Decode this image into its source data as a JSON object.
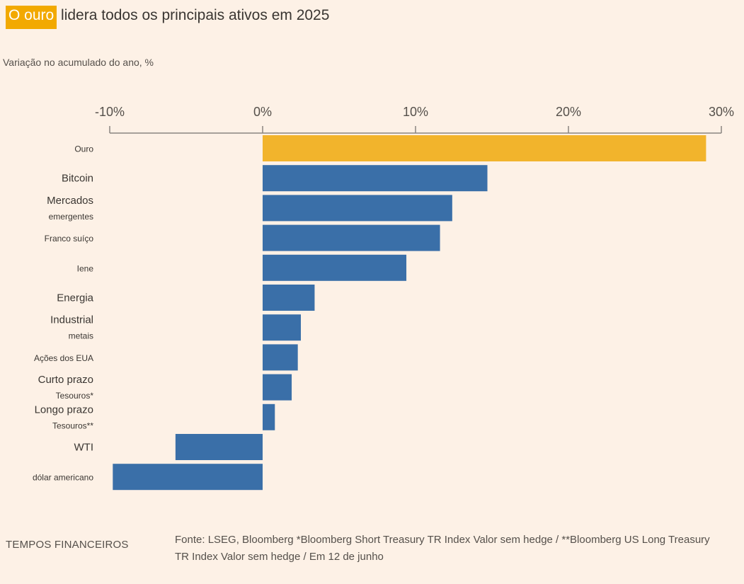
{
  "title": {
    "highlight": "O ouro",
    "rest": " lidera todos os principais ativos em 2025"
  },
  "subtitle": "Variação no acumulado do ano, %",
  "footer": {
    "brand": "TEMPOS FINANCEIROS",
    "source": "Fonte: LSEG, Bloomberg *Bloomberg Short Treasury TR Index Valor sem hedge / **Bloomberg US Long Treasury TR Index Valor sem hedge / Em 12 de junho"
  },
  "colors": {
    "highlight": "#f2b42c",
    "bar": "#3a6fa8",
    "axis": "#8a8580",
    "tick_text": "#55504b",
    "background": "#fdf1e6"
  },
  "chart_data": {
    "type": "bar",
    "orientation": "horizontal",
    "xlim": [
      -10,
      30
    ],
    "ticks": [
      -10,
      0,
      10,
      20,
      30
    ],
    "tick_labels": [
      "-10%",
      "0%",
      "10%",
      "20%",
      "30%"
    ],
    "axis_position": "top",
    "grid": false,
    "categories": [
      "Ouro",
      "Bitcoin",
      "Mercados emergentes",
      "Franco suíço",
      "Iene",
      "Energia",
      "Industrial metais",
      "Ações dos EUA",
      "Curto prazo Tesouros*",
      "Longo prazo Tesouros**",
      "WTI",
      "dólar americano"
    ],
    "category_lines": [
      [
        "Ouro"
      ],
      [
        "Bitcoin"
      ],
      [
        "Mercados",
        "emergentes"
      ],
      [
        "Franco suíço"
      ],
      [
        "Iene"
      ],
      [
        "Energia"
      ],
      [
        "Industrial",
        "metais"
      ],
      [
        "Ações dos EUA"
      ],
      [
        "Curto prazo",
        "Tesouros*"
      ],
      [
        "Longo prazo",
        "Tesouros**"
      ],
      [
        "WTI"
      ],
      [
        "dólar americano"
      ]
    ],
    "values": [
      29.0,
      14.7,
      12.4,
      11.6,
      9.4,
      3.4,
      2.5,
      2.3,
      1.9,
      0.8,
      -5.7,
      -9.8
    ],
    "highlight_index": 0
  }
}
